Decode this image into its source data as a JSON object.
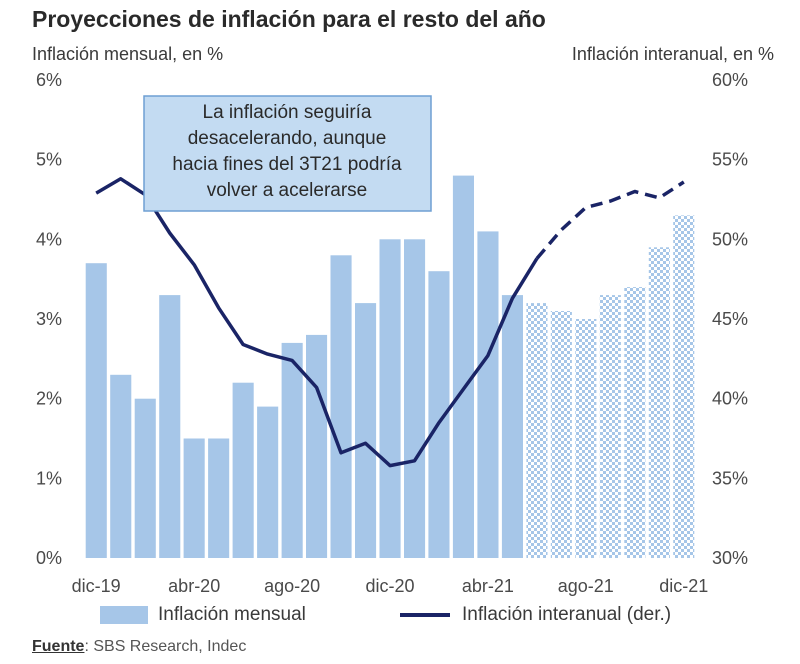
{
  "chart_data": {
    "type": "bar+line",
    "title": "Proyecciones de inflación para el resto del año",
    "ylabel_left": "Inflación mensual, en %",
    "ylabel_right": "Inflación interanual, en %",
    "ylim_left": [
      0,
      6
    ],
    "ylim_right": [
      30,
      60
    ],
    "yticks_left": [
      "0%",
      "1%",
      "2%",
      "3%",
      "4%",
      "5%",
      "6%"
    ],
    "yticks_right": [
      "30%",
      "35%",
      "40%",
      "45%",
      "50%",
      "55%",
      "60%"
    ],
    "months": [
      "dic-19",
      "ene-20",
      "feb-20",
      "mar-20",
      "abr-20",
      "may-20",
      "jun-20",
      "jul-20",
      "ago-20",
      "sep-20",
      "oct-20",
      "nov-20",
      "dic-20",
      "ene-21",
      "feb-21",
      "mar-21",
      "abr-21",
      "may-21",
      "jun-21",
      "jul-21",
      "ago-21",
      "sep-21",
      "oct-21",
      "nov-21",
      "dic-21"
    ],
    "x_tick_labels": [
      "dic-19",
      "abr-20",
      "ago-20",
      "dic-20",
      "abr-21",
      "ago-21",
      "dic-21"
    ],
    "series": [
      {
        "name": "Inflación mensual",
        "type": "bar",
        "color": "#a6c6e8",
        "projection_from_index": 18,
        "values": [
          3.7,
          2.3,
          2.0,
          3.3,
          1.5,
          1.5,
          2.2,
          1.9,
          2.7,
          2.8,
          3.8,
          3.2,
          4.0,
          4.0,
          3.6,
          4.8,
          4.1,
          3.3,
          3.2,
          3.1,
          3.0,
          3.3,
          3.4,
          3.9,
          4.3
        ]
      },
      {
        "name": "Inflación interanual (der.)",
        "type": "line",
        "color": "#1a2466",
        "projection_from_index": 18,
        "values": [
          52.9,
          53.8,
          52.8,
          50.4,
          48.4,
          45.7,
          43.4,
          42.8,
          42.4,
          40.7,
          36.6,
          37.2,
          35.8,
          36.1,
          38.5,
          40.6,
          42.7,
          46.3,
          48.8,
          50.6,
          52.0,
          52.4,
          53.0,
          52.6,
          53.6
        ]
      }
    ],
    "annotation": {
      "lines": [
        "La inflación seguiría",
        "desacelerando, aunque",
        "hacia fines del 3T21 podría",
        "volver a acelerarse"
      ],
      "position": "top-center"
    },
    "legend": {
      "placement": "bottom",
      "bar_label": "Inflación mensual",
      "line_label": "Inflación interanual (der.)"
    },
    "grid": false
  },
  "source": {
    "label": "Fuente",
    "text": ": SBS Research, Indec"
  }
}
